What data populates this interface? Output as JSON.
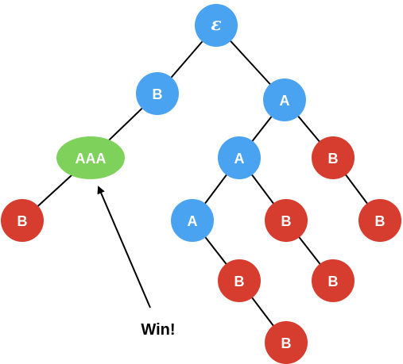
{
  "colors": {
    "blue": "#4aa3f0",
    "red": "#d63d2e",
    "green": "#7ed15a",
    "edge": "#000000"
  },
  "nodes": {
    "root": {
      "label": "ε",
      "color": "blue"
    },
    "b1": {
      "label": "B",
      "color": "blue"
    },
    "a1": {
      "label": "A",
      "color": "blue"
    },
    "aaa": {
      "label": "AAA",
      "color": "green"
    },
    "b_left": {
      "label": "B",
      "color": "red"
    },
    "a2": {
      "label": "A",
      "color": "blue"
    },
    "b2": {
      "label": "B",
      "color": "red"
    },
    "b_right": {
      "label": "B",
      "color": "red"
    },
    "a3": {
      "label": "A",
      "color": "blue"
    },
    "b3": {
      "label": "B",
      "color": "red"
    },
    "b4": {
      "label": "B",
      "color": "red"
    },
    "b5": {
      "label": "B",
      "color": "red"
    },
    "b6": {
      "label": "B",
      "color": "red"
    }
  },
  "annotation": {
    "text": "Win!",
    "arrow_target": "aaa"
  }
}
